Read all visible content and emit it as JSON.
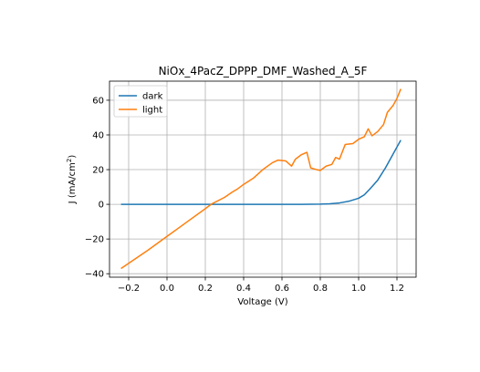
{
  "chart_data": {
    "type": "line",
    "title": "NiOx_4PacZ_DPPP_DMF_Washed_A_5F",
    "xlabel": "Voltage (V)",
    "ylabel_main": "J (mA/cm",
    "ylabel_sup": "2",
    "ylabel_end": ")",
    "xlim": [
      -0.3,
      1.3
    ],
    "ylim": [
      -42,
      71
    ],
    "xticks": [
      -0.2,
      0.0,
      0.2,
      0.4,
      0.6,
      0.8,
      1.0,
      1.2
    ],
    "xtick_labels": [
      "−0.2",
      "0.0",
      "0.2",
      "0.4",
      "0.6",
      "0.8",
      "1.0",
      "1.2"
    ],
    "yticks": [
      -40,
      -20,
      0,
      20,
      40,
      60
    ],
    "ytick_labels": [
      "−40",
      "−20",
      "0",
      "20",
      "40",
      "60"
    ],
    "grid": true,
    "legend_position": "top-left",
    "series": [
      {
        "name": "dark",
        "color": "#1f77b4",
        "x": [
          -0.24,
          -0.1,
          0.0,
          0.2,
          0.4,
          0.6,
          0.7,
          0.8,
          0.85,
          0.9,
          0.95,
          1.0,
          1.03,
          1.06,
          1.1,
          1.14,
          1.18,
          1.22
        ],
        "y": [
          0,
          0,
          0,
          0,
          0,
          0,
          0,
          0.1,
          0.3,
          0.8,
          1.8,
          3.5,
          5.5,
          9,
          14,
          21,
          29,
          37
        ]
      },
      {
        "name": "light",
        "color": "#ff7f0e",
        "x": [
          -0.24,
          -0.1,
          0.0,
          0.1,
          0.2,
          0.23,
          0.3,
          0.34,
          0.37,
          0.4,
          0.45,
          0.5,
          0.55,
          0.58,
          0.62,
          0.65,
          0.67,
          0.7,
          0.73,
          0.75,
          0.78,
          0.8,
          0.83,
          0.86,
          0.88,
          0.9,
          0.93,
          0.97,
          1.0,
          1.03,
          1.05,
          1.07,
          1.1,
          1.13,
          1.15,
          1.18,
          1.2,
          1.22
        ],
        "y": [
          -37,
          -26.5,
          -18.5,
          -10.5,
          -2.5,
          0,
          4,
          7,
          9,
          11.5,
          15,
          20,
          24,
          25.5,
          25,
          22,
          26,
          28.5,
          30,
          21,
          20,
          19.5,
          22,
          23,
          27,
          26,
          34.5,
          35,
          37.5,
          39,
          43.5,
          39.5,
          42,
          46,
          53,
          57,
          61,
          66.5
        ]
      }
    ]
  }
}
